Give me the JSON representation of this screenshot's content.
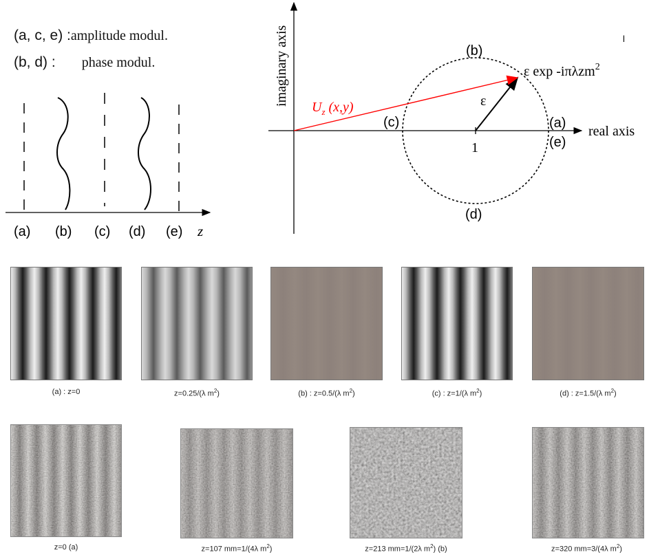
{
  "legend": {
    "amplitude_labels": "(a, c, e) :",
    "amplitude_text": "amplitude modul.",
    "phase_labels": "(b, d) :",
    "phase_text": "phase modul."
  },
  "schematic": {
    "planes": [
      "(a)",
      "(b)",
      "(c)",
      "(d)",
      "(e)"
    ],
    "axis_label": "z"
  },
  "phasor": {
    "imag_axis_label": "imaginary axis",
    "real_axis_label": "real axis",
    "vector_label_main": "U",
    "vector_label_sub": "z",
    "vector_label_args": " (x,y)",
    "epsilon": "ε",
    "exp_label": "ε  exp -iπλzm",
    "exp_power": "2",
    "unit_label": "1",
    "tick_mark": "l",
    "pos_a": "(a)",
    "pos_b": "(b)",
    "pos_c": "(c)",
    "pos_d": "(d)",
    "pos_e": "(e)",
    "vector_color": "#ff0000",
    "circle_color": "#000000"
  },
  "simulated": [
    {
      "pattern": "fringe",
      "caption": "(a) : z=0",
      "sup": ""
    },
    {
      "pattern": "fringe-soft",
      "caption": "z=0.25/(λ m",
      "sup": "2",
      "tail": ")"
    },
    {
      "pattern": "flat",
      "caption": "(b) : z=0.5/(λ m",
      "sup": "2",
      "tail": ")"
    },
    {
      "pattern": "fringe",
      "caption": "(c) : z=1/(λ m",
      "sup": "2",
      "tail": ")"
    },
    {
      "pattern": "flat",
      "caption": "(d) : z=1.5/(λ m",
      "sup": "2",
      "tail": ")"
    }
  ],
  "experimental": [
    {
      "caption": "z=0 (a)",
      "sup": "",
      "tail": ""
    },
    {
      "caption": "z=107 mm=1/(4λ m",
      "sup": "2",
      "tail": ")"
    },
    {
      "caption": "z=213 mm=1/(2λ m",
      "sup": "2",
      "tail": ") (b)"
    },
    {
      "caption": "z=320 mm=3/(4λ m",
      "sup": "2",
      "tail": ")"
    }
  ]
}
